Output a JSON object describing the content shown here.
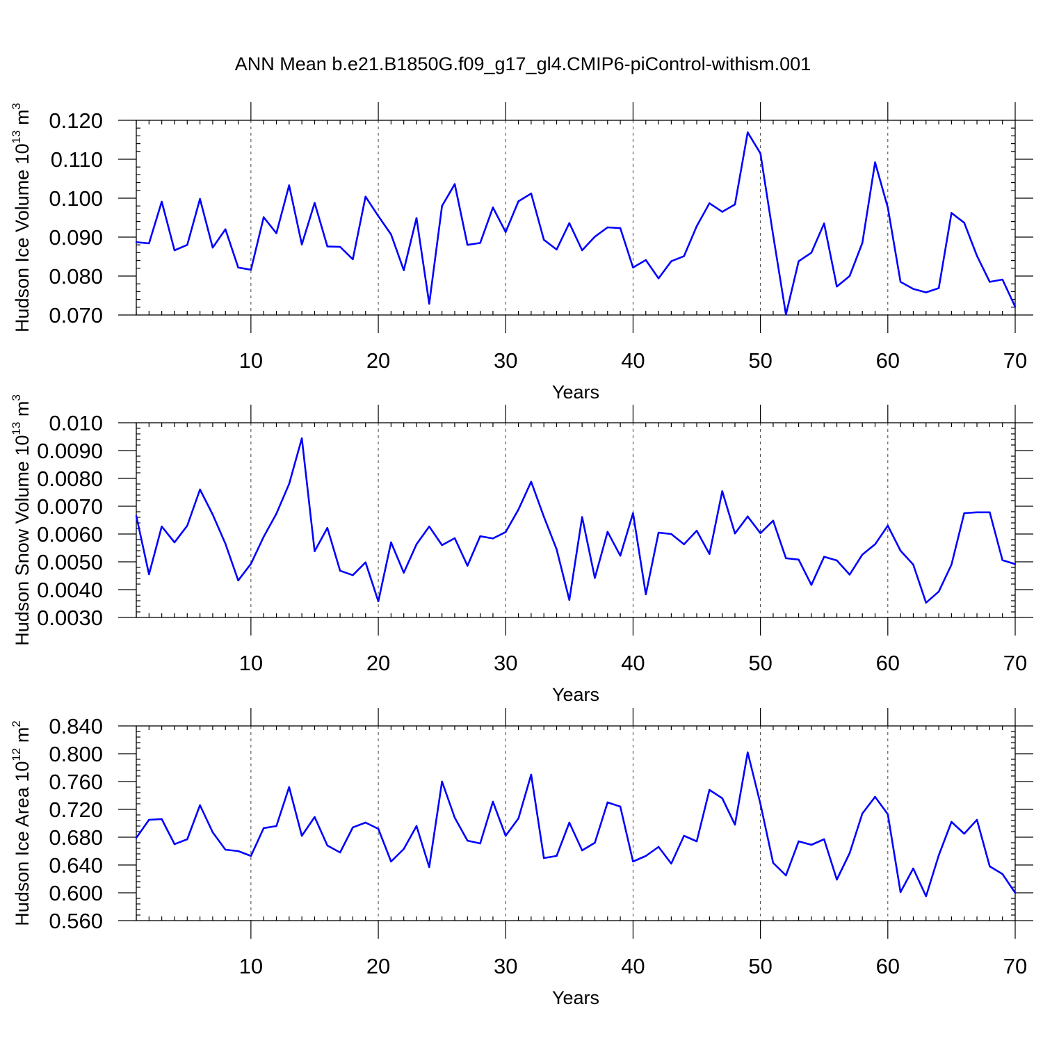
{
  "title": "ANN Mean b.e21.B1850G.f09_g17_gl4.CMIP6-piControl-withism.001",
  "colors": {
    "line": "#0000ff",
    "axis": "#000000",
    "background": "#ffffff"
  },
  "chart_data": [
    {
      "type": "line",
      "ylabel_main": "Hudson Ice Volume 10",
      "ylabel_exp": "13",
      "ylabel_unit": " m",
      "ylabel_unit_exp": "3",
      "xlabel": "Years",
      "xlim": [
        1,
        70
      ],
      "ylim": [
        0.07,
        0.12
      ],
      "y_ticks": [
        "0.070",
        "0.080",
        "0.090",
        "0.100",
        "0.110",
        "0.120"
      ],
      "x_ticks": [
        "10",
        "20",
        "30",
        "40",
        "50",
        "60",
        "70"
      ],
      "x": [
        1,
        2,
        3,
        4,
        5,
        6,
        7,
        8,
        9,
        10,
        11,
        12,
        13,
        14,
        15,
        16,
        17,
        18,
        19,
        20,
        21,
        22,
        23,
        24,
        25,
        26,
        27,
        28,
        29,
        30,
        31,
        32,
        33,
        34,
        35,
        36,
        37,
        38,
        39,
        40,
        41,
        42,
        43,
        44,
        45,
        46,
        47,
        48,
        49,
        50,
        51,
        52,
        53,
        54,
        55,
        56,
        57,
        58,
        59,
        60,
        61,
        62,
        63,
        64,
        65,
        66,
        67,
        68,
        69,
        70
      ],
      "values": [
        0.0887,
        0.0884,
        0.0991,
        0.0866,
        0.088,
        0.0998,
        0.0873,
        0.092,
        0.0822,
        0.0816,
        0.0951,
        0.091,
        0.1033,
        0.0881,
        0.0988,
        0.0876,
        0.0875,
        0.0843,
        0.1004,
        0.0954,
        0.0907,
        0.0815,
        0.0949,
        0.0729,
        0.098,
        0.1036,
        0.088,
        0.0885,
        0.0976,
        0.0913,
        0.0992,
        0.1012,
        0.0893,
        0.0868,
        0.0936,
        0.0866,
        0.0901,
        0.0925,
        0.0923,
        0.0822,
        0.0841,
        0.0794,
        0.0838,
        0.0851,
        0.0928,
        0.0987,
        0.0965,
        0.0984,
        0.1169,
        0.1115,
        0.0905,
        0.0701,
        0.0838,
        0.086,
        0.0935,
        0.0773,
        0.08,
        0.0885,
        0.1092,
        0.0976,
        0.0785,
        0.0767,
        0.0758,
        0.0769,
        0.0962,
        0.0937,
        0.0852,
        0.0785,
        0.0791,
        0.0721
      ]
    },
    {
      "type": "line",
      "ylabel_main": "Hudson Snow Volume 10",
      "ylabel_exp": "13",
      "ylabel_unit": " m",
      "ylabel_unit_exp": "3",
      "xlabel": "Years",
      "xlim": [
        1,
        70
      ],
      "ylim": [
        0.003,
        0.01
      ],
      "y_ticks": [
        "0.0030",
        "0.0040",
        "0.0050",
        "0.0060",
        "0.0070",
        "0.0080",
        "0.0090",
        "0.010"
      ],
      "x_ticks": [
        "10",
        "20",
        "30",
        "40",
        "50",
        "60",
        "70"
      ],
      "x": [
        1,
        2,
        3,
        4,
        5,
        6,
        7,
        8,
        9,
        10,
        11,
        12,
        13,
        14,
        15,
        16,
        17,
        18,
        19,
        20,
        21,
        22,
        23,
        24,
        25,
        26,
        27,
        28,
        29,
        30,
        31,
        32,
        33,
        34,
        35,
        36,
        37,
        38,
        39,
        40,
        41,
        42,
        43,
        44,
        45,
        46,
        47,
        48,
        49,
        50,
        51,
        52,
        53,
        54,
        55,
        56,
        57,
        58,
        59,
        60,
        61,
        62,
        63,
        64,
        65,
        66,
        67,
        68,
        69,
        70
      ],
      "values": [
        0.00665,
        0.00455,
        0.00627,
        0.0057,
        0.0063,
        0.0076,
        0.0067,
        0.00565,
        0.00433,
        0.00493,
        0.0059,
        0.00673,
        0.0078,
        0.00944,
        0.00538,
        0.00622,
        0.00468,
        0.00452,
        0.00498,
        0.00358,
        0.0057,
        0.00461,
        0.00563,
        0.00627,
        0.0056,
        0.00585,
        0.00486,
        0.00592,
        0.00584,
        0.00607,
        0.00688,
        0.00788,
        0.00662,
        0.00545,
        0.00363,
        0.00661,
        0.00442,
        0.00608,
        0.00522,
        0.00675,
        0.00383,
        0.00605,
        0.006,
        0.00563,
        0.00612,
        0.00528,
        0.00754,
        0.00602,
        0.00663,
        0.00603,
        0.00648,
        0.00513,
        0.00508,
        0.00417,
        0.00518,
        0.00505,
        0.00454,
        0.00526,
        0.00563,
        0.0063,
        0.0054,
        0.0049,
        0.00353,
        0.00393,
        0.0049,
        0.00675,
        0.00678,
        0.00678,
        0.00506,
        0.00492
      ]
    },
    {
      "type": "line",
      "ylabel_main": "Hudson Ice Area 10",
      "ylabel_exp": "12",
      "ylabel_unit": " m",
      "ylabel_unit_exp": "2",
      "xlabel": "Years",
      "xlim": [
        1,
        70
      ],
      "ylim": [
        0.56,
        0.84
      ],
      "y_ticks": [
        "0.560",
        "0.600",
        "0.640",
        "0.680",
        "0.720",
        "0.760",
        "0.800",
        "0.840"
      ],
      "x_ticks": [
        "10",
        "20",
        "30",
        "40",
        "50",
        "60",
        "70"
      ],
      "x": [
        1,
        2,
        3,
        4,
        5,
        6,
        7,
        8,
        9,
        10,
        11,
        12,
        13,
        14,
        15,
        16,
        17,
        18,
        19,
        20,
        21,
        22,
        23,
        24,
        25,
        26,
        27,
        28,
        29,
        30,
        31,
        32,
        33,
        34,
        35,
        36,
        37,
        38,
        39,
        40,
        41,
        42,
        43,
        44,
        45,
        46,
        47,
        48,
        49,
        50,
        51,
        52,
        53,
        54,
        55,
        56,
        57,
        58,
        59,
        60,
        61,
        62,
        63,
        64,
        65,
        66,
        67,
        68,
        69,
        70
      ],
      "values": [
        0.679,
        0.705,
        0.706,
        0.67,
        0.677,
        0.726,
        0.687,
        0.662,
        0.66,
        0.653,
        0.693,
        0.696,
        0.752,
        0.682,
        0.709,
        0.668,
        0.658,
        0.694,
        0.701,
        0.692,
        0.645,
        0.663,
        0.696,
        0.637,
        0.76,
        0.708,
        0.675,
        0.671,
        0.731,
        0.682,
        0.707,
        0.77,
        0.65,
        0.653,
        0.701,
        0.661,
        0.672,
        0.73,
        0.724,
        0.645,
        0.653,
        0.666,
        0.642,
        0.682,
        0.674,
        0.748,
        0.736,
        0.698,
        0.802,
        0.728,
        0.643,
        0.625,
        0.674,
        0.669,
        0.677,
        0.619,
        0.657,
        0.714,
        0.738,
        0.713,
        0.601,
        0.635,
        0.595,
        0.654,
        0.702,
        0.685,
        0.705,
        0.638,
        0.627,
        0.6
      ]
    }
  ]
}
